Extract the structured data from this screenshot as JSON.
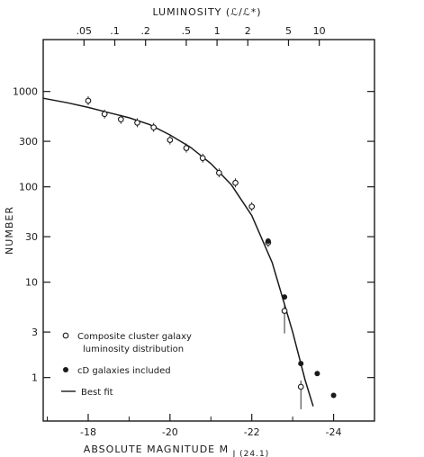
{
  "chart_data": {
    "type": "scatter",
    "x_axis": {
      "label_main": "ABSOLUTE MAGNITUDE  M",
      "label_sub": "J (24.1)",
      "reversed": true,
      "range": [
        -16.9,
        -25.0
      ],
      "ticks": [
        -18,
        -20,
        -22,
        -24
      ],
      "tick_labels": [
        "-18",
        "-20",
        "-22",
        "-24"
      ]
    },
    "top_axis": {
      "label": "LUMINOSITY (ℒ/ℒ*)",
      "ticks": [
        0.05,
        0.1,
        0.2,
        0.5,
        1,
        2,
        5,
        10
      ],
      "tick_labels": [
        ".05",
        ".1",
        ".2",
        ".5",
        "1",
        "2",
        "5",
        "10"
      ]
    },
    "y_axis": {
      "label": "NUMBER",
      "scale": "log",
      "range": [
        0.35,
        3500
      ],
      "ticks": [
        1,
        3,
        10,
        30,
        100,
        300,
        1000
      ],
      "tick_labels": [
        "1",
        "3",
        "10",
        "30",
        "100",
        "300",
        "1000"
      ]
    },
    "series": [
      {
        "name": "Composite cluster galaxy luminosity distribution",
        "marker": "open-circle",
        "points": [
          {
            "x": -18.0,
            "y": 800
          },
          {
            "x": -18.4,
            "y": 580
          },
          {
            "x": -18.8,
            "y": 510
          },
          {
            "x": -19.2,
            "y": 470
          },
          {
            "x": -19.6,
            "y": 420
          },
          {
            "x": -20.0,
            "y": 310
          },
          {
            "x": -20.4,
            "y": 255
          },
          {
            "x": -20.8,
            "y": 200
          },
          {
            "x": -21.2,
            "y": 140
          },
          {
            "x": -21.6,
            "y": 110
          },
          {
            "x": -22.0,
            "y": 62
          },
          {
            "x": -22.4,
            "y": 26
          },
          {
            "x": -22.8,
            "y": 5
          },
          {
            "x": -23.2,
            "y": 0.8
          }
        ]
      },
      {
        "name": "cD galaxies included",
        "marker": "filled-circle",
        "points": [
          {
            "x": -22.4,
            "y": 27
          },
          {
            "x": -22.8,
            "y": 7
          },
          {
            "x": -23.2,
            "y": 1.4
          },
          {
            "x": -23.6,
            "y": 1.1
          },
          {
            "x": -24.0,
            "y": 0.65
          }
        ]
      },
      {
        "name": "Best fit",
        "marker": "line",
        "points": [
          {
            "x": -16.9,
            "y": 850
          },
          {
            "x": -17.5,
            "y": 760
          },
          {
            "x": -18.0,
            "y": 680
          },
          {
            "x": -18.5,
            "y": 600
          },
          {
            "x": -19.0,
            "y": 530
          },
          {
            "x": -19.5,
            "y": 450
          },
          {
            "x": -20.0,
            "y": 350
          },
          {
            "x": -20.5,
            "y": 260
          },
          {
            "x": -21.0,
            "y": 175
          },
          {
            "x": -21.5,
            "y": 105
          },
          {
            "x": -22.0,
            "y": 50
          },
          {
            "x": -22.5,
            "y": 16
          },
          {
            "x": -23.0,
            "y": 3
          },
          {
            "x": -23.3,
            "y": 0.95
          },
          {
            "x": -23.5,
            "y": 0.5
          }
        ]
      }
    ],
    "legend": {
      "placement": "bottom-left",
      "entries": [
        {
          "marker": "open-circle",
          "line1": "Composite cluster galaxy",
          "line2": "luminosity distribution"
        },
        {
          "marker": "filled-circle",
          "line1": "cD galaxies included",
          "line2": ""
        },
        {
          "marker": "line",
          "line1": "Best fit",
          "line2": ""
        }
      ]
    },
    "grid": false
  }
}
